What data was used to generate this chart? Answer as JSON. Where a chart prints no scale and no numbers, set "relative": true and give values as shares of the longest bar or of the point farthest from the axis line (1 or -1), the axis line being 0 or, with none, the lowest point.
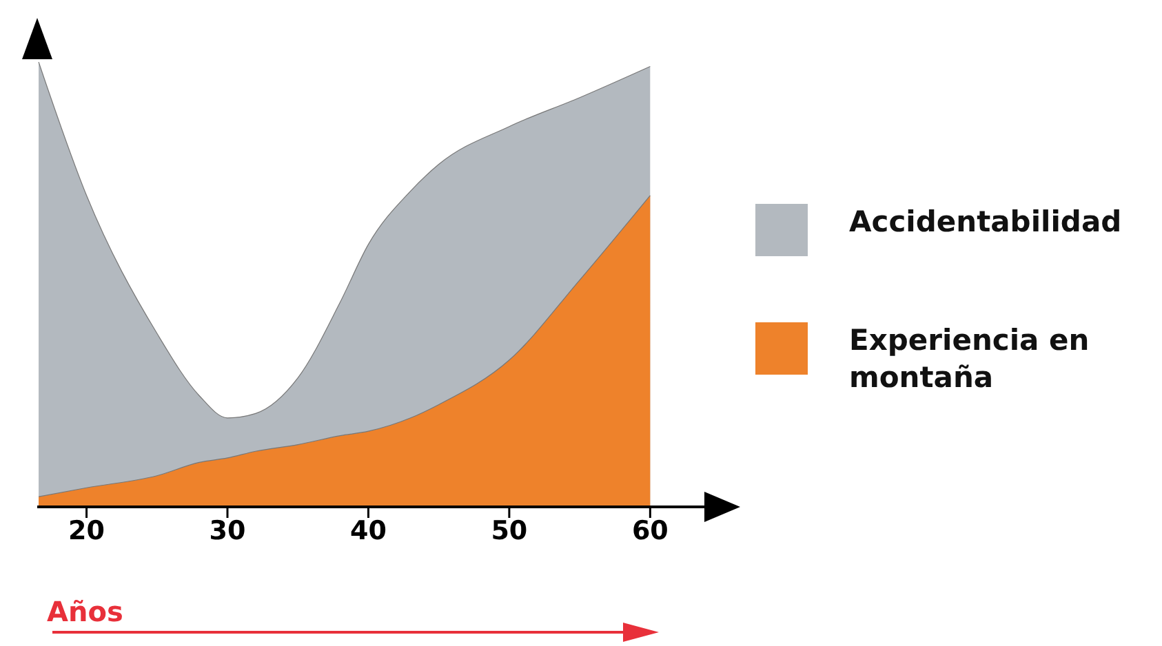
{
  "chart_data": {
    "type": "area",
    "xlabel": "Años",
    "relative": true,
    "legend": "right",
    "x": [
      16.6,
      20,
      25,
      28,
      30,
      32,
      35,
      38,
      40,
      43,
      45,
      50,
      55,
      60
    ],
    "xlim": [
      16.5,
      66
    ],
    "xticks": [
      20,
      30,
      40,
      50,
      60
    ],
    "series": [
      {
        "name": "Accidentabilidad",
        "color": "#b3b9bf",
        "values": [
          1.0,
          0.7,
          0.39,
          0.25,
          0.2,
          0.21,
          0.29,
          0.46,
          0.59,
          0.71,
          0.77,
          0.855,
          0.92,
          0.99
        ]
      },
      {
        "name": "Experiencia en montaña",
        "color": "#ee822b",
        "values": [
          0.023,
          0.043,
          0.07,
          0.1,
          0.11,
          0.125,
          0.14,
          0.16,
          0.17,
          0.2,
          0.23,
          0.33,
          0.51,
          0.7
        ]
      }
    ]
  }
}
